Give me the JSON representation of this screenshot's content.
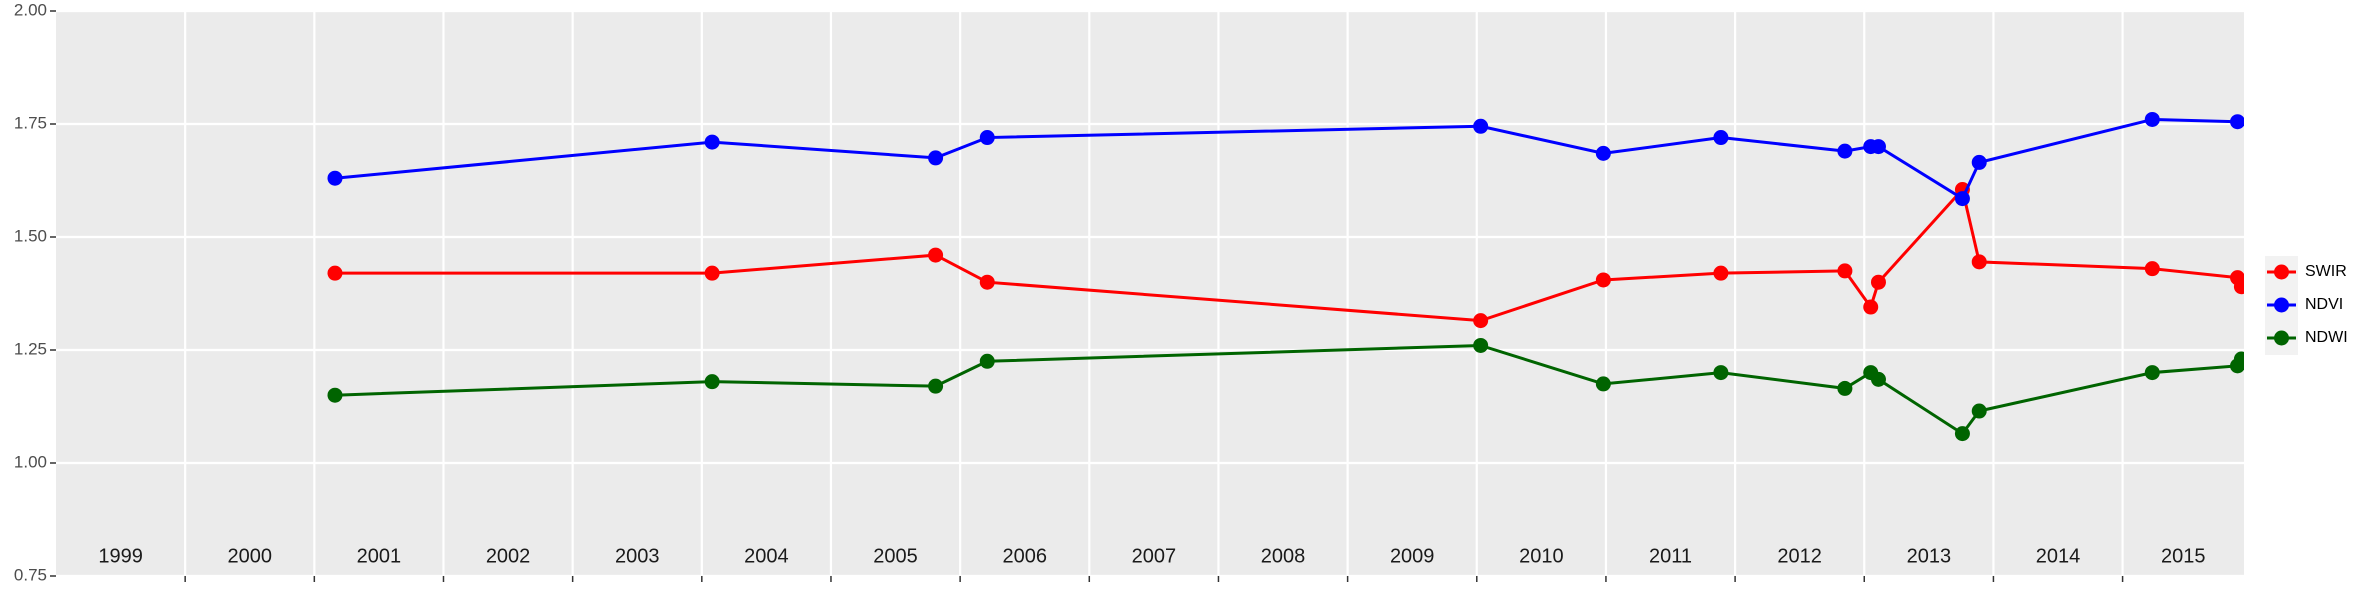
{
  "chart_data": {
    "type": "line",
    "x": [
      2001.16,
      2004.08,
      2005.81,
      2006.21,
      2010.03,
      2010.98,
      2011.89,
      2012.85,
      2013.05,
      2013.11,
      2013.76,
      2013.89,
      2015.23,
      2015.89,
      2015.92
    ],
    "series": [
      {
        "name": "SWIR",
        "color": "#ff0000",
        "values": [
          1.42,
          1.42,
          1.46,
          1.4,
          1.315,
          1.405,
          1.42,
          1.425,
          1.345,
          1.4,
          1.605,
          1.445,
          1.43,
          1.41,
          1.39
        ]
      },
      {
        "name": "NDVI",
        "color": "#0000ff",
        "values": [
          1.63,
          1.71,
          1.675,
          1.72,
          1.745,
          1.685,
          1.72,
          1.69,
          1.7,
          1.7,
          1.585,
          1.665,
          1.76,
          1.755,
          null
        ]
      },
      {
        "name": "NDWI",
        "color": "#006400",
        "values": [
          1.15,
          1.18,
          1.17,
          1.225,
          1.26,
          1.175,
          1.2,
          1.165,
          1.2,
          1.185,
          1.065,
          1.115,
          1.2,
          1.215,
          1.23
        ]
      }
    ],
    "xlim": [
      1999,
      2015.94
    ],
    "xticks": [
      2000,
      2001,
      2002,
      2003,
      2004,
      2005,
      2006,
      2007,
      2008,
      2009,
      2010,
      2011,
      2012,
      2013,
      2014,
      2015
    ],
    "year_labels": [
      "1999",
      "2000",
      "2001",
      "2002",
      "2003",
      "2004",
      "2005",
      "2006",
      "2007",
      "2008",
      "2009",
      "2010",
      "2011",
      "2012",
      "2013",
      "2014",
      "2015"
    ],
    "ylim": [
      0.75,
      2.0
    ],
    "yticks": [
      {
        "value": 0.75,
        "label": "0.75"
      },
      {
        "value": 1.0,
        "label": "1.00"
      },
      {
        "value": 1.25,
        "label": "1.25"
      },
      {
        "value": 1.5,
        "label": "1.50"
      },
      {
        "value": 1.75,
        "label": "1.75"
      },
      {
        "value": 2.0,
        "label": "2.00"
      }
    ],
    "grid": true,
    "legend": "right"
  }
}
